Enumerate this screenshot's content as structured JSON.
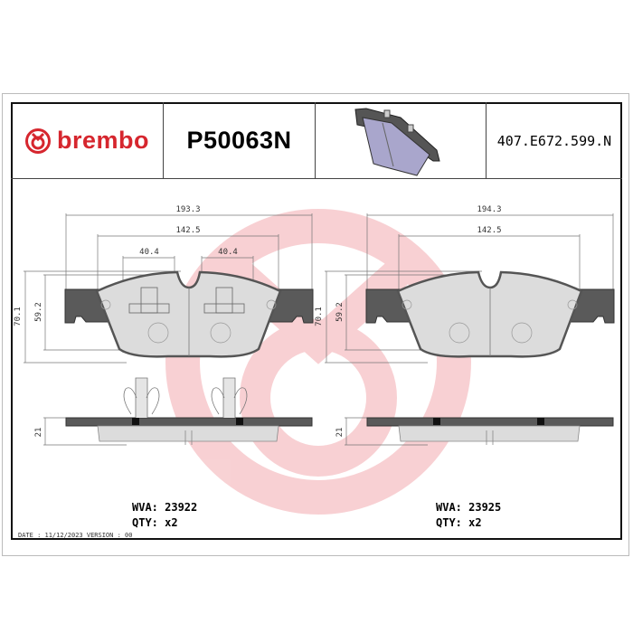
{
  "header": {
    "brand": "brembo",
    "part_number": "P50063N",
    "reference_code": "407.E672.599.N",
    "brand_color": "#d6262e",
    "product_image": "brake-pad-3d-icon"
  },
  "drawings": [
    {
      "overall_width": "193.3",
      "friction_width": "142.5",
      "sensor_offsets": [
        "40.4",
        "40.4"
      ],
      "overall_height": "70.1",
      "friction_height": "59.2",
      "thickness": "21",
      "wva": "WVA: 23922",
      "qty": "QTY: x2"
    },
    {
      "overall_width": "194.3",
      "friction_width": "142.5",
      "overall_height": "70.1",
      "friction_height": "59.2",
      "thickness": "21",
      "wva": "WVA: 23925",
      "qty": "QTY: x2"
    }
  ],
  "footer": "DATE : 11/12/2023 VERSION : 00",
  "watermark": "brembo-logo-watermark"
}
